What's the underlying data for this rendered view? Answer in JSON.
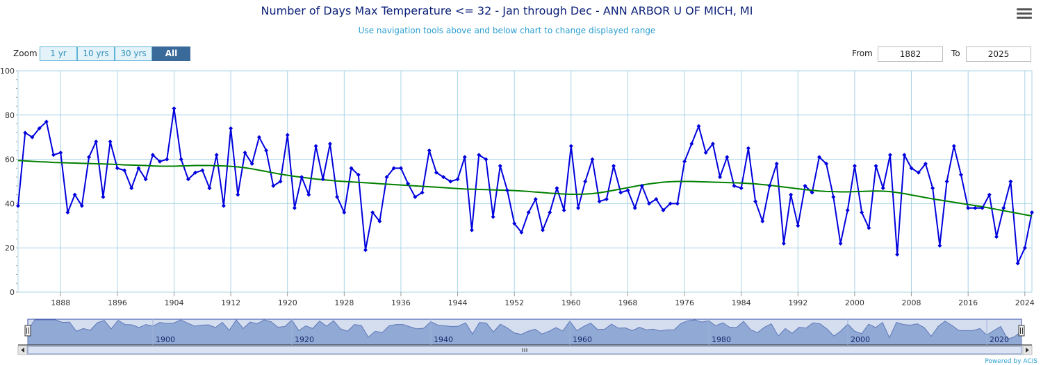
{
  "header": {
    "title": "Number of Days Max Temperature <= 32 - Jan through Dec - ANN ARBOR U OF MICH, MI",
    "subtitle": "Use navigation tools above and below chart to change displayed range",
    "menu_icon": "hamburger-menu-icon"
  },
  "zoom": {
    "label": "Zoom",
    "buttons": [
      "1 yr",
      "10 yrs",
      "30 yrs",
      "All"
    ],
    "active": "All"
  },
  "range": {
    "from_label": "From",
    "from_value": "1882",
    "to_label": "To",
    "to_value": "2025"
  },
  "navigator": {
    "tick_labels": [
      "1900",
      "1920",
      "1940",
      "1960",
      "1980",
      "2000",
      "2020"
    ]
  },
  "credits": "Powered by ACIS",
  "chart_data": {
    "type": "line",
    "title": "Number of Days Max Temperature <= 32 - Jan through Dec - ANN ARBOR U OF MICH, MI",
    "xlabel": "",
    "ylabel": "",
    "xlim": [
      1882,
      2025
    ],
    "ylim": [
      0,
      100
    ],
    "y_ticks": [
      0,
      20,
      40,
      60,
      80,
      100
    ],
    "x_ticks": [
      1888,
      1896,
      1904,
      1912,
      1920,
      1928,
      1936,
      1944,
      1952,
      1960,
      1968,
      1976,
      1984,
      1992,
      2000,
      2008,
      2016,
      2024
    ],
    "grid": true,
    "colors": {
      "observed": "#0000dd",
      "trend": "#008000",
      "grid": "#a8d4e6",
      "navigator": "#8aa3d1"
    },
    "x_start": 1882,
    "series": [
      {
        "values": [
          39,
          72,
          70,
          74,
          77,
          62,
          63,
          36,
          44,
          39,
          61,
          68,
          43,
          68,
          56,
          55,
          47,
          56,
          51,
          62,
          59,
          60,
          83,
          60,
          51,
          54,
          55,
          47,
          62,
          39,
          74,
          44,
          63,
          58,
          70,
          64,
          48,
          50,
          71,
          38,
          52,
          44,
          66,
          51,
          67,
          43,
          36,
          56,
          53,
          19,
          36,
          32,
          52,
          56,
          56,
          49,
          43,
          45,
          64,
          54,
          52,
          50,
          51,
          61,
          28,
          62,
          60,
          34,
          57,
          46,
          31,
          27,
          36,
          42,
          28,
          36,
          47,
          37,
          66,
          38,
          50,
          60,
          41,
          42,
          57,
          45,
          46,
          38,
          48,
          40,
          42,
          37,
          40,
          40,
          59,
          67,
          75,
          63,
          67,
          52,
          61,
          48,
          47,
          65,
          41,
          32,
          48,
          58,
          22,
          44,
          30,
          48,
          45,
          61,
          58,
          43,
          22,
          37,
          57,
          36,
          29,
          57,
          47,
          62,
          17,
          62,
          56,
          54,
          58,
          47,
          21,
          50,
          66,
          53,
          38,
          38,
          38,
          44,
          25,
          38,
          50,
          13,
          20,
          36
        ]
      },
      {
        "values": [
          59.5,
          59.3,
          59.1,
          58.9,
          58.8,
          58.6,
          58.5,
          58.4,
          58.3,
          58.2,
          58.1,
          58.0,
          57.9,
          57.8,
          57.7,
          57.5,
          57.4,
          57.3,
          57.2,
          57.0,
          56.9,
          56.9,
          56.9,
          57.0,
          57.1,
          57.2,
          57.2,
          57.2,
          57.1,
          57.0,
          56.8,
          56.6,
          56.2,
          55.7,
          55.1,
          54.5,
          53.9,
          53.3,
          52.8,
          52.3,
          51.9,
          51.5,
          51.1,
          50.8,
          50.5,
          50.2,
          50.0,
          49.8,
          49.6,
          49.4,
          49.2,
          49.0,
          48.8,
          48.6,
          48.4,
          48.2,
          48.0,
          47.8,
          47.6,
          47.4,
          47.2,
          47.0,
          46.8,
          46.6,
          46.5,
          46.4,
          46.3,
          46.2,
          46.1,
          46.0,
          45.9,
          45.7,
          45.5,
          45.2,
          45.0,
          44.7,
          44.5,
          44.3,
          44.2,
          44.2,
          44.3,
          44.5,
          44.9,
          45.4,
          46.0,
          46.6,
          47.2,
          47.8,
          48.4,
          48.9,
          49.3,
          49.7,
          49.9,
          50.0,
          50.0,
          50.0,
          49.9,
          49.8,
          49.7,
          49.6,
          49.5,
          49.4,
          49.3,
          49.1,
          48.9,
          48.6,
          48.3,
          47.9,
          47.5,
          47.1,
          46.7,
          46.3,
          46.0,
          45.7,
          45.5,
          45.4,
          45.3,
          45.3,
          45.4,
          45.5,
          45.6,
          45.7,
          45.6,
          45.4,
          45.0,
          44.5,
          43.9,
          43.3,
          42.7,
          42.1,
          41.6,
          41.1,
          40.6,
          40.1,
          39.6,
          39.1,
          38.6,
          38.0,
          37.4,
          36.8,
          36.2,
          35.6,
          35.0,
          34.4
        ]
      }
    ]
  }
}
